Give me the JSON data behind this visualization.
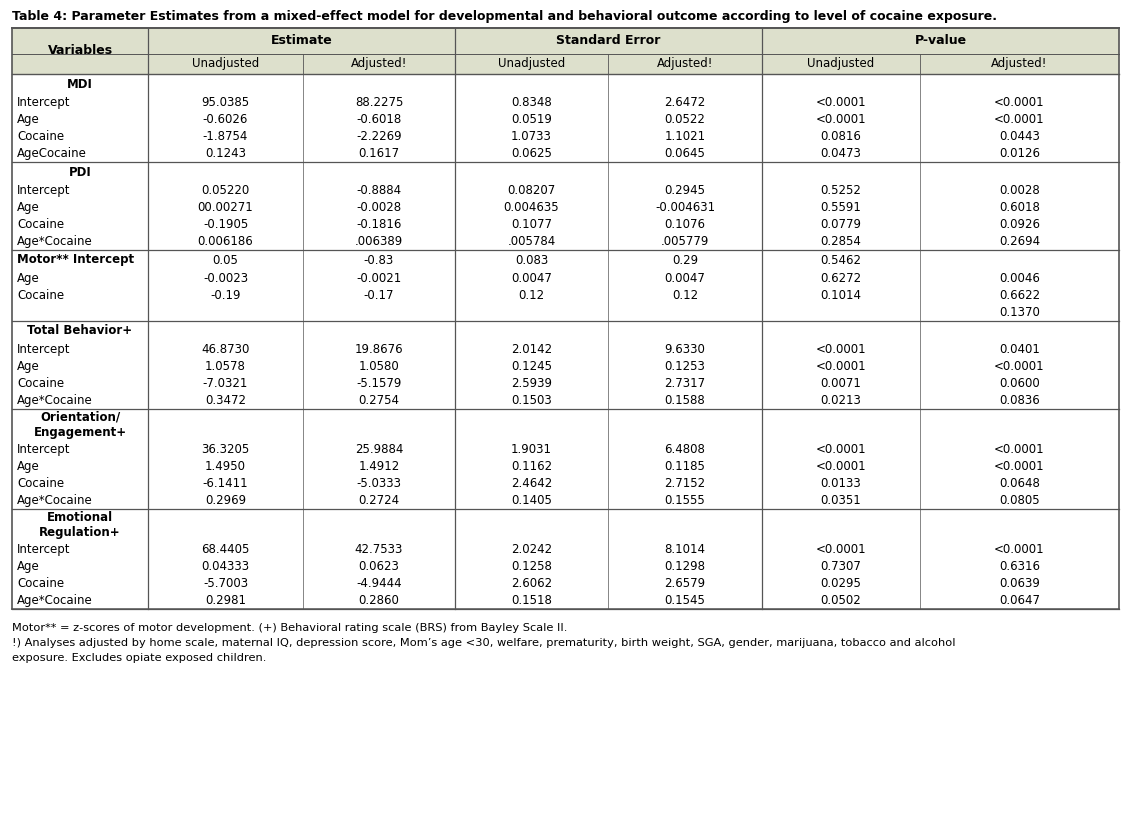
{
  "title": "Table 4: Parameter Estimates from a mixed-effect model for developmental and behavioral outcome according to level of cocaine exposure.",
  "header_bg": "#dde0cc",
  "border_color": "#666666",
  "col_groups": [
    {
      "label": "Estimate",
      "span": 2
    },
    {
      "label": "Standard Error",
      "span": 2
    },
    {
      "label": "P-value",
      "span": 2
    }
  ],
  "sub_headers": [
    "Unadjusted",
    "Adjusted!",
    "Unadjusted",
    "Adjusted!",
    "Unadjusted",
    "Adjusted!"
  ],
  "sections": [
    {
      "type": "normal",
      "title": "MDI",
      "rows": [
        {
          "label": "Intercept",
          "vals": [
            "95.0385",
            "88.2275",
            "0.8348",
            "2.6472",
            "<0.0001",
            "<0.0001"
          ]
        },
        {
          "label": "Age",
          "vals": [
            "-0.6026",
            "-0.6018",
            "0.0519",
            "0.0522",
            "<0.0001",
            "<0.0001"
          ]
        },
        {
          "label": "Cocaine",
          "vals": [
            "-1.8754",
            "-2.2269",
            "1.0733",
            "1.1021",
            "0.0816",
            "0.0443"
          ]
        },
        {
          "label": "AgeCocaine",
          "vals": [
            "0.1243",
            "0.1617",
            "0.0625",
            "0.0645",
            "0.0473",
            "0.0126"
          ]
        }
      ]
    },
    {
      "type": "normal",
      "title": "PDI",
      "rows": [
        {
          "label": "Intercept",
          "vals": [
            "0.05220",
            "-0.8884",
            "0.08207",
            "0.2945",
            "0.5252",
            "0.0028"
          ]
        },
        {
          "label": "Age",
          "vals": [
            "00.00271",
            "-0.0028",
            "0.004635",
            "-0.004631",
            "0.5591",
            "0.6018"
          ]
        },
        {
          "label": "Cocaine",
          "vals": [
            "-0.1905",
            "-0.1816",
            "0.1077",
            "0.1076",
            "0.0779",
            "0.0926"
          ]
        },
        {
          "label": "Age*Cocaine",
          "vals": [
            "0.006186",
            ".006389",
            ".005784",
            ".005779",
            "0.2854",
            "0.2694"
          ]
        }
      ]
    },
    {
      "type": "motor",
      "title": "Motor** Intercept",
      "sublabels": [
        "Age",
        "Cocaine"
      ],
      "rows": [
        {
          "vals": [
            "0.05",
            "-0.83",
            "0.083",
            "0.29",
            "0.5462",
            ""
          ]
        },
        {
          "vals": [
            "-0.0023",
            "-0.0021",
            "0.0047",
            "0.0047",
            "0.6272",
            "0.0046"
          ]
        },
        {
          "vals": [
            "-0.19",
            "-0.17",
            "0.12",
            "0.12",
            "0.1014",
            "0.6622"
          ]
        },
        {
          "vals": [
            "",
            "",
            "",
            "",
            "",
            "0.1370"
          ]
        }
      ]
    },
    {
      "type": "normal",
      "title": "Total Behavior+",
      "rows": [
        {
          "label": "Intercept",
          "vals": [
            "46.8730",
            "19.8676",
            "2.0142",
            "9.6330",
            "<0.0001",
            "0.0401"
          ]
        },
        {
          "label": "Age",
          "vals": [
            "1.0578",
            "1.0580",
            "0.1245",
            "0.1253",
            "<0.0001",
            "<0.0001"
          ]
        },
        {
          "label": "Cocaine",
          "vals": [
            "-7.0321",
            "-5.1579",
            "2.5939",
            "2.7317",
            "0.0071",
            "0.0600"
          ]
        },
        {
          "label": "Age*Cocaine",
          "vals": [
            "0.3472",
            "0.2754",
            "0.1503",
            "0.1588",
            "0.0213",
            "0.0836"
          ]
        }
      ]
    },
    {
      "type": "normal",
      "title": "Orientation/\nEngagement+",
      "title_lines": 2,
      "rows": [
        {
          "label": "Intercept",
          "vals": [
            "36.3205",
            "25.9884",
            "1.9031",
            "6.4808",
            "<0.0001",
            "<0.0001"
          ]
        },
        {
          "label": "Age",
          "vals": [
            "1.4950",
            "1.4912",
            "0.1162",
            "0.1185",
            "<0.0001",
            "<0.0001"
          ]
        },
        {
          "label": "Cocaine",
          "vals": [
            "-6.1411",
            "-5.0333",
            "2.4642",
            "2.7152",
            "0.0133",
            "0.0648"
          ]
        },
        {
          "label": "Age*Cocaine",
          "vals": [
            "0.2969",
            "0.2724",
            "0.1405",
            "0.1555",
            "0.0351",
            "0.0805"
          ]
        }
      ]
    },
    {
      "type": "normal",
      "title": "Emotional\nRegulation+",
      "title_lines": 2,
      "rows": [
        {
          "label": "Intercept",
          "vals": [
            "68.4405",
            "42.7533",
            "2.0242",
            "8.1014",
            "<0.0001",
            "<0.0001"
          ]
        },
        {
          "label": "Age",
          "vals": [
            "0.04333",
            "0.0623",
            "0.1258",
            "0.1298",
            "0.7307",
            "0.6316"
          ]
        },
        {
          "label": "Cocaine",
          "vals": [
            "-5.7003",
            "-4.9444",
            "2.6062",
            "2.6579",
            "0.0295",
            "0.0639"
          ]
        },
        {
          "label": "Age*Cocaine",
          "vals": [
            "0.2981",
            "0.2860",
            "0.1518",
            "0.1545",
            "0.0502",
            "0.0647"
          ]
        }
      ]
    }
  ],
  "footnotes": [
    "Motor** = z-scores of motor development. (+) Behavioral rating scale (BRS) from Bayley Scale II.",
    "!) Analyses adjusted by home scale, maternal IQ, depression score, Mom’s age <30, welfare, prematurity, birth weight, SGA, gender, marijuana, tobacco and alcohol",
    "exposure. Excludes opiate exposed children."
  ]
}
